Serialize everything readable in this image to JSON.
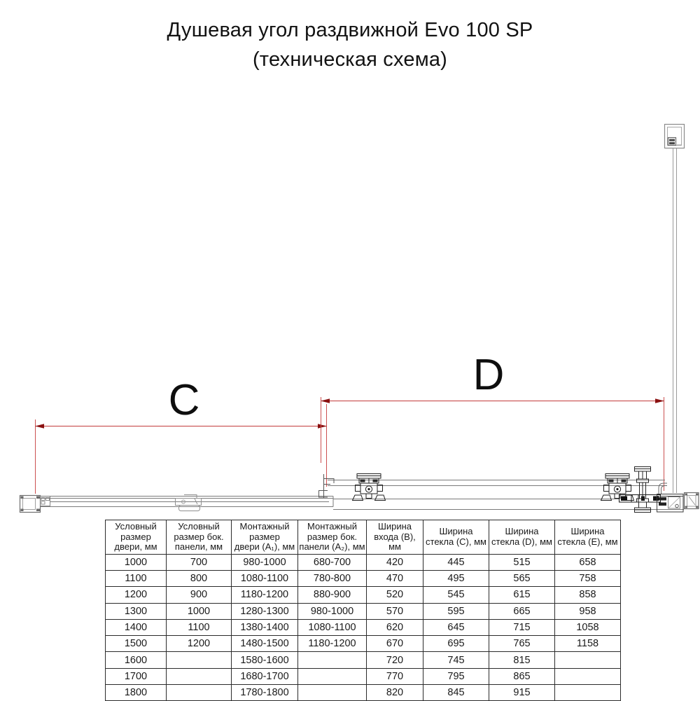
{
  "title": {
    "line1": "Душевая угол раздвижной Evo 100 SP",
    "line2": "(техническая схема)"
  },
  "diagram": {
    "dim_c_label": "C",
    "dim_d_label": "D",
    "dimension_line_color": "#cc5050",
    "dimension_arrow_color": "#8a1111",
    "drawing_line_color": "#7a7a7a",
    "drawing_dark_color": "#1f1f1f"
  },
  "table": {
    "columns": [
      "Условный\nразмер\nдвери, мм",
      "Условный\nразмер бок.\nпанели, мм",
      "Монтажный\nразмер\nдвери (A₁), мм",
      "Монтажный\nразмер бок.\nпанели (A₂), мм",
      "Ширина\nвхода (B), мм",
      "Ширина\nстекла (C), мм",
      "Ширина\nстекла (D), мм",
      "Ширина\nстекла (E), мм"
    ],
    "rows": [
      [
        "1000",
        "700",
        "980-1000",
        "680-700",
        "420",
        "445",
        "515",
        "658"
      ],
      [
        "1100",
        "800",
        "1080-1100",
        "780-800",
        "470",
        "495",
        "565",
        "758"
      ],
      [
        "1200",
        "900",
        "1180-1200",
        "880-900",
        "520",
        "545",
        "615",
        "858"
      ],
      [
        "1300",
        "1000",
        "1280-1300",
        "980-1000",
        "570",
        "595",
        "665",
        "958"
      ],
      [
        "1400",
        "1100",
        "1380-1400",
        "1080-1100",
        "620",
        "645",
        "715",
        "1058"
      ],
      [
        "1500",
        "1200",
        "1480-1500",
        "1180-1200",
        "670",
        "695",
        "765",
        "1158"
      ],
      [
        "1600",
        "",
        "1580-1600",
        "",
        "720",
        "745",
        "815",
        ""
      ],
      [
        "1700",
        "",
        "1680-1700",
        "",
        "770",
        "795",
        "865",
        ""
      ],
      [
        "1800",
        "",
        "1780-1800",
        "",
        "820",
        "845",
        "915",
        ""
      ]
    ]
  }
}
